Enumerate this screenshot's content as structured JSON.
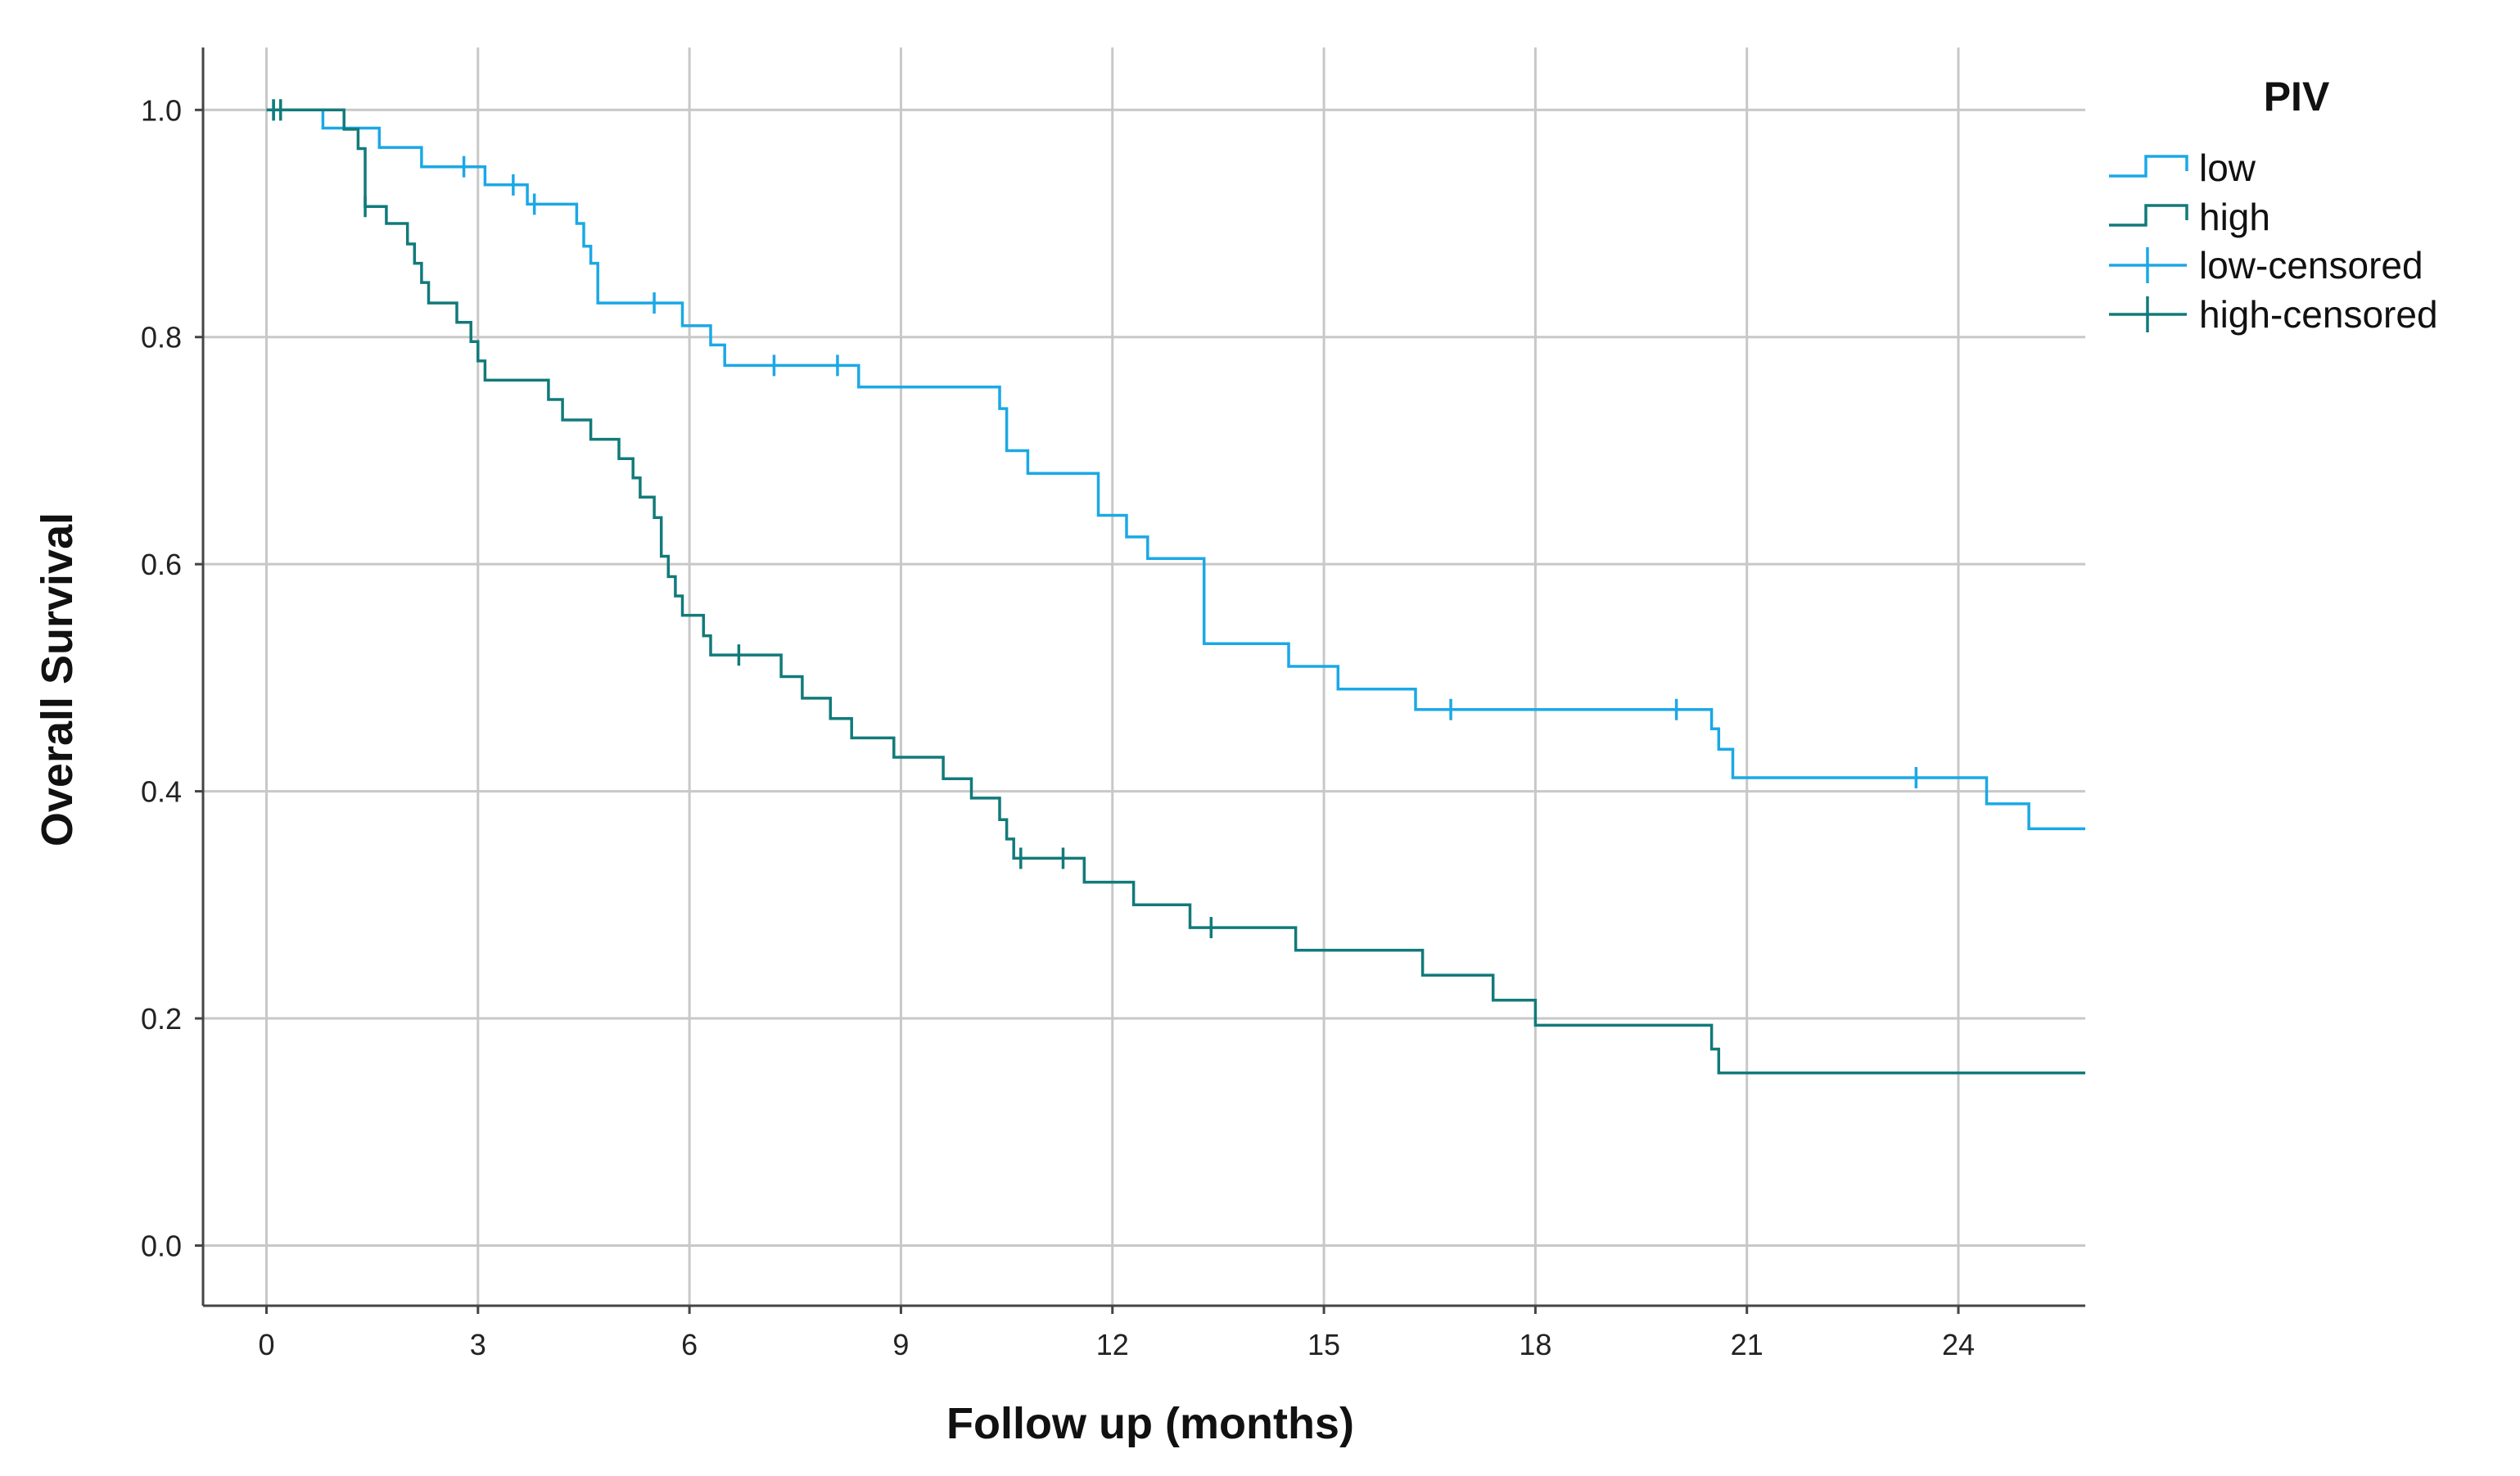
{
  "chart_data": {
    "type": "line",
    "subtype": "kaplan-meier step",
    "title": "",
    "xlabel": "Follow up (months)",
    "ylabel": "Overall Survival",
    "xlim": [
      -0.9,
      25.8
    ],
    "ylim": [
      -0.053,
      1.055
    ],
    "x_ticks": [
      0,
      3,
      6,
      9,
      12,
      15,
      18,
      21,
      24
    ],
    "x_tick_labels": [
      "0",
      "3",
      "6",
      "9",
      "12",
      "15",
      "18",
      "21",
      "24"
    ],
    "y_ticks": [
      0.0,
      0.2,
      0.4,
      0.6,
      0.8,
      1.0
    ],
    "y_tick_labels": [
      "0.0",
      "0.2",
      "0.4",
      "0.6",
      "0.8",
      "1.0"
    ],
    "grid": true,
    "legend": {
      "title": "PIV",
      "placement": "right",
      "entries": [
        {
          "label": "low",
          "kind": "step",
          "color": "#1BA8E6"
        },
        {
          "label": "high",
          "kind": "step",
          "color": "#127A7A"
        },
        {
          "label": "low-censored",
          "kind": "censor",
          "color": "#1BA8E6"
        },
        {
          "label": "high-censored",
          "kind": "censor",
          "color": "#127A7A"
        }
      ]
    },
    "series": [
      {
        "name": "low",
        "color": "#1BA8E6",
        "steps": [
          [
            0,
            1.0
          ],
          [
            0.8,
            0.984
          ],
          [
            1.6,
            0.967
          ],
          [
            2.2,
            0.95
          ],
          [
            3.1,
            0.934
          ],
          [
            3.7,
            0.917
          ],
          [
            4.4,
            0.9
          ],
          [
            4.5,
            0.88
          ],
          [
            4.6,
            0.865
          ],
          [
            4.7,
            0.83
          ],
          [
            5.9,
            0.81
          ],
          [
            6.3,
            0.793
          ],
          [
            6.5,
            0.775
          ],
          [
            8.4,
            0.756
          ],
          [
            10.4,
            0.737
          ],
          [
            10.5,
            0.7
          ],
          [
            10.8,
            0.68
          ],
          [
            11.8,
            0.643
          ],
          [
            12.2,
            0.624
          ],
          [
            12.5,
            0.605
          ],
          [
            13.3,
            0.53
          ],
          [
            14.5,
            0.51
          ],
          [
            15.2,
            0.49
          ],
          [
            16.3,
            0.472
          ],
          [
            20.5,
            0.455
          ],
          [
            20.6,
            0.437
          ],
          [
            20.8,
            0.412
          ],
          [
            24.4,
            0.389
          ],
          [
            25.0,
            0.367
          ]
        ],
        "end_x": 25.8,
        "censored": [
          [
            0.1,
            1.0
          ],
          [
            0.2,
            1.0
          ],
          [
            2.8,
            0.95
          ],
          [
            3.5,
            0.934
          ],
          [
            3.8,
            0.917
          ],
          [
            5.5,
            0.83
          ],
          [
            7.2,
            0.775
          ],
          [
            8.1,
            0.775
          ],
          [
            16.8,
            0.472
          ],
          [
            20.0,
            0.472
          ],
          [
            23.4,
            0.412
          ]
        ]
      },
      {
        "name": "high",
        "color": "#127A7A",
        "steps": [
          [
            0,
            1.0
          ],
          [
            1.1,
            0.983
          ],
          [
            1.3,
            0.966
          ],
          [
            1.4,
            0.915
          ],
          [
            1.7,
            0.9
          ],
          [
            2.0,
            0.882
          ],
          [
            2.1,
            0.865
          ],
          [
            2.2,
            0.848
          ],
          [
            2.3,
            0.83
          ],
          [
            2.7,
            0.813
          ],
          [
            2.9,
            0.796
          ],
          [
            3.0,
            0.779
          ],
          [
            3.1,
            0.762
          ],
          [
            4.0,
            0.745
          ],
          [
            4.2,
            0.727
          ],
          [
            4.6,
            0.71
          ],
          [
            5.0,
            0.693
          ],
          [
            5.2,
            0.676
          ],
          [
            5.3,
            0.659
          ],
          [
            5.5,
            0.641
          ],
          [
            5.6,
            0.607
          ],
          [
            5.7,
            0.589
          ],
          [
            5.8,
            0.572
          ],
          [
            5.9,
            0.555
          ],
          [
            6.2,
            0.537
          ],
          [
            6.3,
            0.52
          ],
          [
            7.3,
            0.501
          ],
          [
            7.6,
            0.482
          ],
          [
            8.0,
            0.464
          ],
          [
            8.3,
            0.447
          ],
          [
            8.9,
            0.43
          ],
          [
            9.6,
            0.411
          ],
          [
            10.0,
            0.394
          ],
          [
            10.4,
            0.375
          ],
          [
            10.5,
            0.358
          ],
          [
            10.6,
            0.341
          ],
          [
            11.6,
            0.32
          ],
          [
            12.3,
            0.3
          ],
          [
            13.1,
            0.28
          ],
          [
            14.6,
            0.26
          ],
          [
            16.4,
            0.238
          ],
          [
            17.4,
            0.216
          ],
          [
            18.0,
            0.194
          ],
          [
            20.5,
            0.173
          ],
          [
            20.6,
            0.152
          ]
        ],
        "end_x": 25.8,
        "censored": [
          [
            0.1,
            1.0
          ],
          [
            0.2,
            1.0
          ],
          [
            1.4,
            0.915
          ],
          [
            6.7,
            0.52
          ],
          [
            10.7,
            0.341
          ],
          [
            11.3,
            0.341
          ],
          [
            13.4,
            0.28
          ]
        ]
      }
    ]
  }
}
